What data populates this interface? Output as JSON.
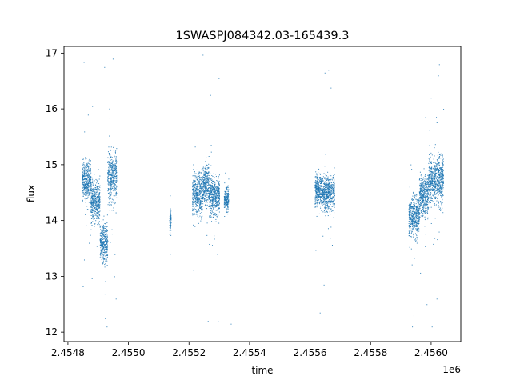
{
  "chart_data": {
    "type": "scatter",
    "title": "1SWASPJ084342.03-165439.3",
    "xlabel": "time",
    "ylabel": "flux",
    "x_offset_label": "1e6",
    "xlim": [
      2454787,
      2456098
    ],
    "ylim": [
      11.83,
      17.12
    ],
    "x_ticks": [
      2454800,
      2455000,
      2455200,
      2455400,
      2455600,
      2455800,
      2456000
    ],
    "x_tick_labels": [
      "2.4548",
      "2.4550",
      "2.4552",
      "2.4554",
      "2.4556",
      "2.4558",
      "2.4560"
    ],
    "y_ticks": [
      12,
      13,
      14,
      15,
      16,
      17
    ],
    "y_tick_labels": [
      "12",
      "13",
      "14",
      "15",
      "16",
      "17"
    ],
    "grid": false,
    "marker_color": "#1f77b4",
    "series": [
      {
        "segments": [
          {
            "x_range": [
              2454845,
              2454875
            ],
            "y_center": 14.7,
            "y_spread": 0.45
          },
          {
            "x_range": [
              2454875,
              2454905
            ],
            "y_center": 14.35,
            "y_spread": 0.45
          },
          {
            "x_range": [
              2454905,
              2454930
            ],
            "y_center": 13.6,
            "y_spread": 0.45
          },
          {
            "x_range": [
              2454930,
              2454960
            ],
            "y_center": 14.8,
            "y_spread": 0.6
          },
          {
            "x_range": [
              2455135,
              2455140
            ],
            "y_center": 14.0,
            "y_spread": 0.3
          },
          {
            "x_range": [
              2455210,
              2455245
            ],
            "y_center": 14.5,
            "y_spread": 0.45
          },
          {
            "x_range": [
              2455245,
              2455265
            ],
            "y_center": 14.65,
            "y_spread": 0.45
          },
          {
            "x_range": [
              2455265,
              2455300
            ],
            "y_center": 14.45,
            "y_spread": 0.45
          },
          {
            "x_range": [
              2455315,
              2455330
            ],
            "y_center": 14.4,
            "y_spread": 0.25
          },
          {
            "x_range": [
              2455615,
              2455640
            ],
            "y_center": 14.55,
            "y_spread": 0.35
          },
          {
            "x_range": [
              2455640,
              2455680
            ],
            "y_center": 14.5,
            "y_spread": 0.4
          },
          {
            "x_range": [
              2455925,
              2455960
            ],
            "y_center": 14.1,
            "y_spread": 0.45
          },
          {
            "x_range": [
              2455960,
              2455990
            ],
            "y_center": 14.45,
            "y_spread": 0.45
          },
          {
            "x_range": [
              2455990,
              2456010
            ],
            "y_center": 14.75,
            "y_spread": 0.5
          },
          {
            "x_range": [
              2456010,
              2456040
            ],
            "y_center": 14.75,
            "y_spread": 0.55
          }
        ],
        "outliers": [
          [
            2454852,
            16.84
          ],
          [
            2454849,
            12.82
          ],
          [
            2454853,
            13.3
          ],
          [
            2454880,
            16.05
          ],
          [
            2454920,
            16.75
          ],
          [
            2454928,
            12.1
          ],
          [
            2454922,
            12.25
          ],
          [
            2454948,
            16.9
          ],
          [
            2454958,
            12.6
          ],
          [
            2454953,
            13.0
          ],
          [
            2455137,
            14.45
          ],
          [
            2455137,
            13.4
          ],
          [
            2455245,
            16.97
          ],
          [
            2455262,
            12.2
          ],
          [
            2455270,
            16.25
          ],
          [
            2455298,
            16.55
          ],
          [
            2455295,
            12.2
          ],
          [
            2455338,
            12.15
          ],
          [
            2455330,
            14.75
          ],
          [
            2455632,
            12.35
          ],
          [
            2455648,
            16.65
          ],
          [
            2455660,
            16.7
          ],
          [
            2455668,
            16.38
          ],
          [
            2455645,
            12.85
          ],
          [
            2455937,
            12.1
          ],
          [
            2455942,
            12.3
          ],
          [
            2455980,
            15.85
          ],
          [
            2455985,
            12.5
          ],
          [
            2455999,
            16.2
          ],
          [
            2456002,
            12.1
          ],
          [
            2456018,
            12.6
          ],
          [
            2456026,
            16.8
          ],
          [
            2456023,
            16.6
          ],
          [
            2456040,
            16.0
          ]
        ]
      }
    ]
  }
}
